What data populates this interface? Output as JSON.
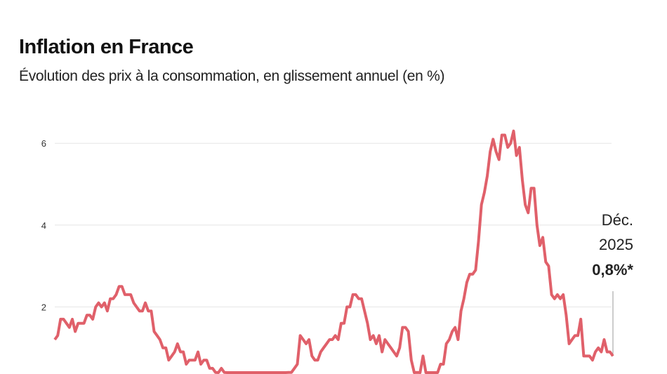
{
  "chart_data": {
    "type": "line",
    "title": "Inflation en France",
    "subtitle": "Évolution des prix à la consommation, en glissement annuel (en %)",
    "xlabel": "",
    "ylabel": "",
    "x_start": "2010-01",
    "x_end": "2025-12",
    "frequency": "monthly",
    "ylim": [
      0,
      6.5
    ],
    "yticks": [
      "2",
      "4",
      "6"
    ],
    "grid": true,
    "line_color": "#e0606a",
    "series": [
      {
        "values": [
          1.2,
          1.3,
          1.7,
          1.7,
          1.6,
          1.5,
          1.7,
          1.4,
          1.6,
          1.6,
          1.6,
          1.8,
          1.8,
          1.7,
          2.0,
          2.1,
          2.0,
          2.1,
          1.9,
          2.2,
          2.2,
          2.3,
          2.5,
          2.5,
          2.3,
          2.3,
          2.3,
          2.1,
          2.0,
          1.9,
          1.9,
          2.1,
          1.9,
          1.9,
          1.4,
          1.3,
          1.2,
          1.0,
          1.0,
          0.7,
          0.8,
          0.9,
          1.1,
          0.9,
          0.9,
          0.6,
          0.7,
          0.7,
          0.7,
          0.9,
          0.6,
          0.7,
          0.7,
          0.5,
          0.5,
          0.4,
          0.3,
          0.5,
          0.4,
          0.1,
          -0.4,
          -0.3,
          -0.1,
          0.1,
          0.3,
          0.3,
          0.2,
          0.1,
          0.0,
          0.1,
          0.1,
          0.2,
          0.2,
          -0.2,
          -0.1,
          -0.2,
          0.0,
          0.2,
          0.2,
          0.2,
          0.4,
          0.4,
          0.5,
          0.6,
          1.3,
          1.2,
          1.1,
          1.2,
          0.8,
          0.7,
          0.7,
          0.9,
          1.0,
          1.1,
          1.2,
          1.2,
          1.3,
          1.2,
          1.6,
          1.6,
          2.0,
          2.0,
          2.3,
          2.3,
          2.2,
          2.2,
          1.9,
          1.6,
          1.2,
          1.3,
          1.1,
          1.3,
          0.9,
          1.2,
          1.1,
          1.0,
          0.9,
          0.8,
          1.0,
          1.5,
          1.5,
          1.4,
          0.7,
          0.3,
          0.4,
          0.2,
          0.8,
          0.2,
          0.0,
          0.0,
          0.2,
          0.0,
          0.6,
          0.6,
          1.1,
          1.2,
          1.4,
          1.5,
          1.2,
          1.9,
          2.2,
          2.6,
          2.8,
          2.8,
          2.9,
          3.6,
          4.5,
          4.8,
          5.2,
          5.8,
          6.1,
          5.8,
          5.6,
          6.2,
          6.2,
          5.9,
          6.0,
          6.3,
          5.7,
          5.9,
          5.1,
          4.5,
          4.3,
          4.9,
          4.9,
          4.0,
          3.5,
          3.7,
          3.1,
          3.0,
          2.3,
          2.2,
          2.3,
          2.2,
          2.3,
          1.8,
          1.1,
          1.2,
          1.3,
          1.3,
          1.7,
          0.8,
          0.8,
          0.8,
          0.7,
          0.9,
          1.0,
          0.9,
          1.2,
          0.9,
          0.9,
          0.8
        ]
      }
    ],
    "annotation": {
      "line1": "Déc.",
      "line2": "2025",
      "value": "0,8%*"
    }
  }
}
